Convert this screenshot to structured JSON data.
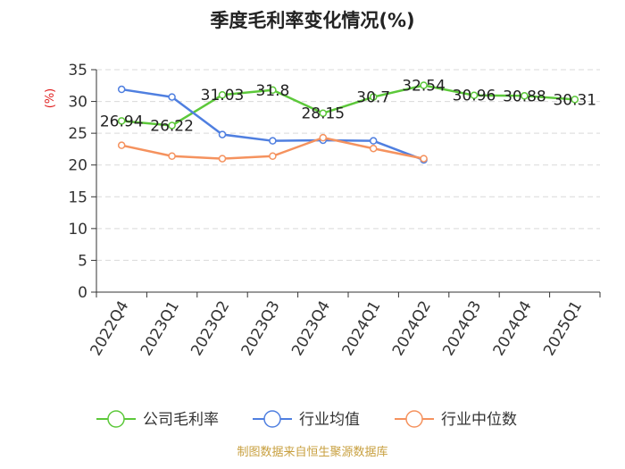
{
  "title": "季度毛利率变化情况(%)",
  "unit_label": "(%)",
  "source": "制图数据来自恒生聚源数据库",
  "chart_data": {
    "type": "line",
    "title": "季度毛利率变化情况(%)",
    "ylabel": "(%)",
    "xlabel": "",
    "ylim": [
      0,
      35
    ],
    "yticks": [
      0,
      5,
      10,
      15,
      20,
      25,
      30,
      35
    ],
    "grid": true,
    "legend_position": "bottom",
    "categories": [
      "2022Q4",
      "2023Q1",
      "2023Q2",
      "2023Q3",
      "2023Q4",
      "2024Q1",
      "2024Q2",
      "2024Q3",
      "2024Q4",
      "2025Q1"
    ],
    "series": [
      {
        "name": "公司毛利率",
        "color": "#5cc83a",
        "values": [
          26.94,
          26.22,
          31.03,
          31.8,
          28.15,
          30.7,
          32.54,
          30.96,
          30.88,
          30.31
        ],
        "labels": [
          "26.94",
          "26.22",
          "31.03",
          "31.8",
          "28.15",
          "30.7",
          "32.54",
          "30.96",
          "30.88",
          "30.31"
        ]
      },
      {
        "name": "行业均值",
        "color": "#4f7fe0",
        "values": [
          31.9,
          30.7,
          24.8,
          23.8,
          23.9,
          23.8,
          20.8,
          null,
          null,
          null
        ]
      },
      {
        "name": "行业中位数",
        "color": "#f5925e",
        "values": [
          23.1,
          21.4,
          21.0,
          21.4,
          24.3,
          22.6,
          21.0,
          null,
          null,
          null
        ]
      }
    ]
  }
}
